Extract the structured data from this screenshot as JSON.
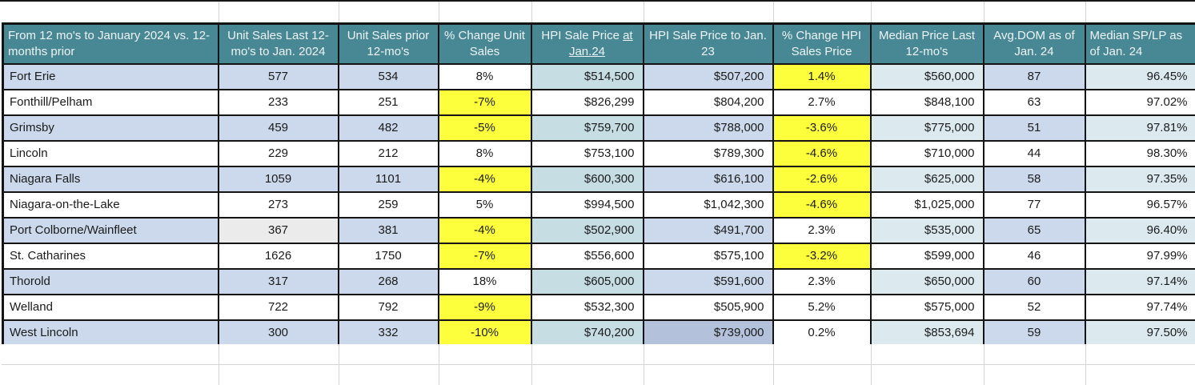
{
  "colors": {
    "header_teal": "#488794",
    "header_text": "#edf4f6",
    "row_periwinkle": "#ccd8ec",
    "hpi_jan24_cyan": "#c5dde3",
    "light_cyan": "#dceaf0",
    "highlight_yellow": "#fdff3c",
    "grey_cell": "#ebebeb",
    "dark_blue_cell": "#b3c1da",
    "border_black": "#141414",
    "gridline_grey": "#d4d4d4"
  },
  "table": {
    "headers": [
      {
        "key": "region",
        "label": "From 12 mo's to January 2024 vs. 12-months prior"
      },
      {
        "key": "unit_sales_last",
        "label": "Unit Sales Last 12-mo's to Jan. 2024"
      },
      {
        "key": "unit_sales_prior",
        "label": "Unit Sales prior 12-mo's"
      },
      {
        "key": "pct_change_units",
        "label": "% Change Unit Sales"
      },
      {
        "key": "hpi_jan24",
        "label_pre": "HPI Sale Price ",
        "label_underlined": "at Jan.24"
      },
      {
        "key": "hpi_jan23",
        "label": "HPI Sale Price to Jan. 23"
      },
      {
        "key": "pct_change_hpi",
        "label": "% Change HPI Sales Price"
      },
      {
        "key": "median_price",
        "label": "Median Price Last 12-mo's"
      },
      {
        "key": "avg_dom",
        "label": "Avg.DOM as of Jan. 24"
      },
      {
        "key": "sp_lp",
        "label": "Median SP/LP as of Jan. 24"
      }
    ],
    "rows": [
      {
        "region": "Fort Erie",
        "unit_sales_last": "577",
        "unit_sales_prior": "534",
        "pct_change_units": "8%",
        "hpi_jan24": "$514,500",
        "hpi_jan23": "$507,200",
        "pct_change_hpi": "1.4%",
        "median_price": "$560,000",
        "avg_dom": "87",
        "sp_lp": "96.45%",
        "shade": "blue",
        "yellow_units_pct": false,
        "yellow_hpi_pct": true,
        "special": {}
      },
      {
        "region": "Fonthill/Pelham",
        "unit_sales_last": "233",
        "unit_sales_prior": "251",
        "pct_change_units": "-7%",
        "hpi_jan24": "$826,299",
        "hpi_jan23": "$804,200",
        "pct_change_hpi": "2.7%",
        "median_price": "$848,100",
        "avg_dom": "63",
        "sp_lp": "97.02%",
        "shade": "white",
        "yellow_units_pct": true,
        "yellow_hpi_pct": false,
        "special": {}
      },
      {
        "region": "Grimsby",
        "unit_sales_last": "459",
        "unit_sales_prior": "482",
        "pct_change_units": "-5%",
        "hpi_jan24": "$759,700",
        "hpi_jan23": "$788,000",
        "pct_change_hpi": "-3.6%",
        "median_price": "$775,000",
        "avg_dom": "51",
        "sp_lp": "97.81%",
        "shade": "blue",
        "yellow_units_pct": true,
        "yellow_hpi_pct": true,
        "special": {}
      },
      {
        "region": "Lincoln",
        "unit_sales_last": "229",
        "unit_sales_prior": "212",
        "pct_change_units": "8%",
        "hpi_jan24": "$753,100",
        "hpi_jan23": "$789,300",
        "pct_change_hpi": "-4.6%",
        "median_price": "$710,000",
        "avg_dom": "44",
        "sp_lp": "98.30%",
        "shade": "white",
        "yellow_units_pct": false,
        "yellow_hpi_pct": true,
        "special": {}
      },
      {
        "region": "Niagara Falls",
        "unit_sales_last": "1059",
        "unit_sales_prior": "1101",
        "pct_change_units": "-4%",
        "hpi_jan24": "$600,300",
        "hpi_jan23": "$616,100",
        "pct_change_hpi": "-2.6%",
        "median_price": "$625,000",
        "avg_dom": "58",
        "sp_lp": "97.35%",
        "shade": "blue",
        "yellow_units_pct": true,
        "yellow_hpi_pct": true,
        "special": {}
      },
      {
        "region": "Niagara-on-the-Lake",
        "unit_sales_last": "273",
        "unit_sales_prior": "259",
        "pct_change_units": "5%",
        "hpi_jan24": "$994,500",
        "hpi_jan23": "$1,042,300",
        "pct_change_hpi": "-4.6%",
        "median_price": "$1,025,000",
        "avg_dom": "77",
        "sp_lp": "96.57%",
        "shade": "white",
        "yellow_units_pct": false,
        "yellow_hpi_pct": true,
        "special": {}
      },
      {
        "region": "Port Colborne/Wainfleet",
        "unit_sales_last": "367",
        "unit_sales_prior": "381",
        "pct_change_units": "-4%",
        "hpi_jan24": "$502,900",
        "hpi_jan23": "$491,700",
        "pct_change_hpi": "2.3%",
        "median_price": "$535,000",
        "avg_dom": "65",
        "sp_lp": "96.40%",
        "shade": "blue",
        "yellow_units_pct": true,
        "yellow_hpi_pct": false,
        "special": {
          "unit_sales_last": "grey"
        }
      },
      {
        "region": "St. Catharines",
        "unit_sales_last": "1626",
        "unit_sales_prior": "1750",
        "pct_change_units": "-7%",
        "hpi_jan24": "$556,600",
        "hpi_jan23": "$575,100",
        "pct_change_hpi": "-3.2%",
        "median_price": "$599,000",
        "avg_dom": "46",
        "sp_lp": "97.99%",
        "shade": "white",
        "yellow_units_pct": true,
        "yellow_hpi_pct": true,
        "special": {}
      },
      {
        "region": "Thorold",
        "unit_sales_last": "317",
        "unit_sales_prior": "268",
        "pct_change_units": "18%",
        "hpi_jan24": "$605,000",
        "hpi_jan23": "$591,600",
        "pct_change_hpi": "2.3%",
        "median_price": "$650,000",
        "avg_dom": "60",
        "sp_lp": "97.14%",
        "shade": "blue",
        "yellow_units_pct": false,
        "yellow_hpi_pct": false,
        "special": {}
      },
      {
        "region": "Welland",
        "unit_sales_last": "722",
        "unit_sales_prior": "792",
        "pct_change_units": "-9%",
        "hpi_jan24": "$532,300",
        "hpi_jan23": "$505,900",
        "pct_change_hpi": "5.2%",
        "median_price": "$575,000",
        "avg_dom": "52",
        "sp_lp": "97.74%",
        "shade": "white",
        "yellow_units_pct": true,
        "yellow_hpi_pct": false,
        "special": {}
      },
      {
        "region": "West Lincoln",
        "unit_sales_last": "300",
        "unit_sales_prior": "332",
        "pct_change_units": "-10%",
        "hpi_jan24": "$740,200",
        "hpi_jan23": "$739,000",
        "pct_change_hpi": "0.2%",
        "median_price": "$853,694",
        "avg_dom": "59",
        "sp_lp": "97.50%",
        "shade": "blue",
        "yellow_units_pct": true,
        "yellow_hpi_pct": false,
        "special": {
          "hpi_jan23": "dark"
        }
      }
    ]
  }
}
